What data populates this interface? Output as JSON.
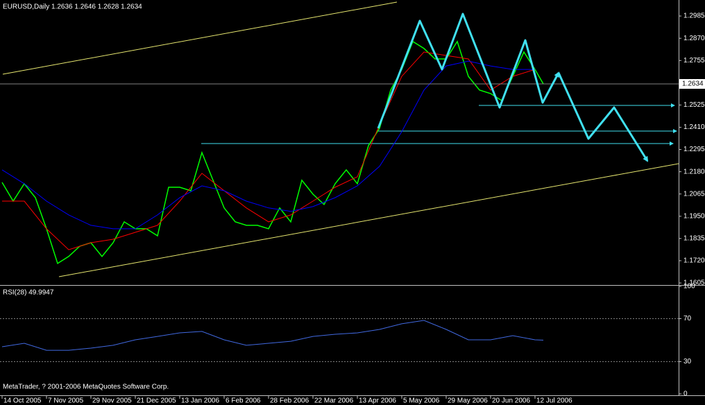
{
  "header": {
    "title": "EURUSD,Daily  1.2636 1.2646 1.2628 1.2634",
    "footer": "MetaTrader, ? 2001-2006 MetaQuotes Software Corp.",
    "last_price": 1.2634
  },
  "chart_data": [
    {
      "type": "line",
      "xlim": [
        -0.75,
        243.75
      ],
      "xticks": [
        {
          "value": 0,
          "label": "14 Oct 2005"
        },
        {
          "value": 16,
          "label": "7 Nov 2005"
        },
        {
          "value": 32,
          "label": "29 Nov 2005"
        },
        {
          "value": 48,
          "label": "21 Dec 2005"
        },
        {
          "value": 64,
          "label": "13 Jan 2006"
        },
        {
          "value": 80,
          "label": "6 Feb 2006"
        },
        {
          "value": 96,
          "label": "28 Feb 2006"
        },
        {
          "value": 112,
          "label": "22 Mar 2006"
        },
        {
          "value": 128,
          "label": "13 Apr 2006"
        },
        {
          "value": 144,
          "label": "5 May 2006"
        },
        {
          "value": 160,
          "label": "29 May 2006"
        },
        {
          "value": 176,
          "label": "20 Jun 2006"
        },
        {
          "value": 192,
          "label": "12 Jul 2006"
        }
      ],
      "ylim": [
        1.1598,
        1.3057
      ],
      "yticks": [
        1.2985,
        {
          "value": 1.287,
          "label": "1.2870"
        },
        1.2755,
        1.2525,
        {
          "value": 1.241,
          "label": "1.2410"
        },
        1.2295,
        {
          "value": 1.218,
          "label": "1.2180"
        },
        1.2065,
        {
          "value": 1.195,
          "label": "1.1950"
        },
        1.1835,
        {
          "value": 1.172,
          "label": "1.1720"
        },
        1.1605
      ],
      "series": [
        {
          "color": "#00ff00",
          "x": [
            0,
            4,
            8,
            12,
            16,
            20,
            24,
            28,
            32,
            36,
            40,
            44,
            48,
            52,
            56,
            60,
            64,
            68,
            72,
            76,
            80,
            84,
            88,
            92,
            96,
            100,
            104,
            108,
            112,
            116,
            120,
            124,
            128,
            132,
            136,
            140,
            144,
            148,
            152,
            156,
            160,
            164,
            168,
            172,
            176,
            180,
            184,
            188,
            192,
            195
          ],
          "values": [
            1.2125,
            1.2028,
            1.2118,
            1.2046,
            1.1885,
            1.1706,
            1.1742,
            1.1795,
            1.1813,
            1.1742,
            1.1813,
            1.1921,
            1.1885,
            1.1885,
            1.1849,
            1.21,
            1.21,
            1.2082,
            1.2279,
            1.2136,
            1.1993,
            1.1921,
            1.1903,
            1.1903,
            1.1885,
            1.1993,
            1.1921,
            1.2136,
            1.2064,
            1.2011,
            1.2118,
            1.219,
            1.2118,
            1.2315,
            1.2405,
            1.2602,
            1.2709,
            1.2853,
            1.2817,
            1.2763,
            1.2763,
            1.2853,
            1.2673,
            1.2602,
            1.2584,
            1.2548,
            1.2673,
            1.2799,
            1.2709,
            1.2634
          ]
        },
        {
          "color": "#ff0000",
          "x": [
            0,
            8,
            16,
            24,
            32,
            40,
            48,
            56,
            64,
            72,
            80,
            88,
            96,
            104,
            112,
            120,
            128,
            136,
            144,
            152,
            160,
            168,
            176,
            184,
            192
          ],
          "values": [
            1.2028,
            1.2028,
            1.1885,
            1.1777,
            1.1813,
            1.1831,
            1.1867,
            1.1903,
            1.2028,
            1.2172,
            1.2082,
            1.1993,
            1.1921,
            1.1957,
            1.2028,
            1.21,
            1.2154,
            1.2423,
            1.2673,
            1.2799,
            1.2781,
            1.2763,
            1.2602,
            1.2673,
            1.2709
          ]
        },
        {
          "color": "#0000ff",
          "x": [
            0,
            8,
            16,
            24,
            32,
            40,
            48,
            56,
            64,
            72,
            80,
            88,
            96,
            104,
            112,
            120,
            128,
            136,
            144,
            152,
            160,
            168,
            176,
            184,
            192
          ],
          "values": [
            1.219,
            1.2118,
            1.2028,
            1.1957,
            1.1903,
            1.1885,
            1.1885,
            1.1957,
            1.2046,
            1.2107,
            1.2082,
            1.2028,
            1.1993,
            1.1975,
            1.2,
            1.2046,
            1.2107,
            1.2208,
            1.2387,
            1.2602,
            1.2727,
            1.2752,
            1.2727,
            1.2709,
            1.2709
          ]
        }
      ]
    },
    {
      "type": "line",
      "title": "RSI(28) 49.9947",
      "xlim": [
        -0.75,
        243.75
      ],
      "ylim": [
        0,
        100
      ],
      "yticks": [
        0,
        30,
        70,
        100
      ],
      "series": [
        {
          "color": "#4169e1",
          "x": [
            0,
            8,
            16,
            24,
            32,
            40,
            48,
            56,
            64,
            72,
            80,
            88,
            96,
            104,
            112,
            120,
            128,
            136,
            144,
            152,
            160,
            168,
            176,
            184,
            192,
            195
          ],
          "values": [
            43.9,
            47.1,
            40.6,
            40.6,
            42.6,
            45.2,
            50.3,
            53.5,
            56.8,
            58.1,
            50.3,
            45.2,
            47.1,
            49,
            53.5,
            55.5,
            56.8,
            60,
            65.2,
            68.4,
            60,
            50.3,
            50.3,
            54.2,
            50.3,
            49.9947
          ]
        }
      ]
    }
  ]
}
